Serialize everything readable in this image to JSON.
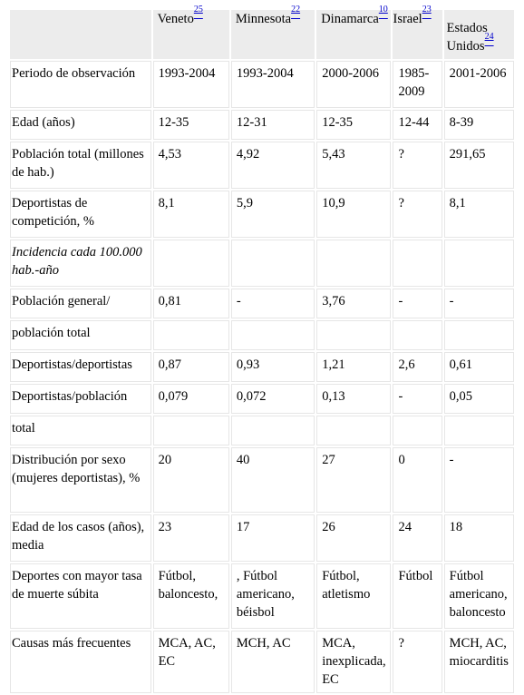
{
  "columns": [
    {
      "name": "",
      "ref": ""
    },
    {
      "name": "Veneto",
      "ref": "25"
    },
    {
      "name": "Minnesota",
      "ref": "22"
    },
    {
      "name": "Dinamarca",
      "ref": "10"
    },
    {
      "name": "Israel",
      "ref": "23"
    },
    {
      "name": "Estados Unidos",
      "ref": "24"
    }
  ],
  "rows": [
    {
      "label": "Periodo de observación",
      "cells": [
        "1993-2004",
        "1993-2004",
        "2000-2006",
        "1985-2009",
        "2001-2006"
      ]
    },
    {
      "label": "Edad (años)",
      "cells": [
        "12-35",
        "12-31",
        "12-35",
        "12-44",
        "8-39"
      ]
    },
    {
      "label": "Población total (millones de hab.)",
      "cells": [
        "4,53",
        "4,92",
        "5,43",
        "?",
        "291,65"
      ]
    },
    {
      "label": "Deportistas de competición, %",
      "cells": [
        "8,1",
        "5,9",
        "10,9",
        "?",
        "8,1"
      ]
    },
    {
      "label": "Incidencia cada 100.000 hab.-año",
      "cells": [
        "",
        "",
        "",
        "",
        ""
      ]
    },
    {
      "label": "Población general/",
      "cells": [
        "0,81",
        "-",
        "3,76",
        "-",
        "-"
      ]
    },
    {
      "label": "población total",
      "cells": [
        "",
        "",
        "",
        "",
        ""
      ]
    },
    {
      "label": "Deportistas/deportistas",
      "cells": [
        "0,87",
        "0,93",
        "1,21",
        "2,6",
        "0,61"
      ]
    },
    {
      "label": "Deportistas/población",
      "cells": [
        "0,079",
        "0,072",
        "0,13",
        "-",
        "0,05"
      ]
    },
    {
      "label": "total",
      "cells": [
        "",
        "",
        "",
        "",
        ""
      ]
    },
    {
      "label": "Distribución por sexo (mujeres deportistas), %",
      "cells": [
        "20",
        "40",
        "27",
        "0",
        "-"
      ]
    },
    {
      "label": "Edad de los casos (años), media",
      "cells": [
        "23",
        "17",
        "26",
        "24",
        "18"
      ]
    },
    {
      "label": "Deportes con mayor tasa de muerte súbita",
      "cells": [
        "Fútbol, baloncesto,",
        ", Fútbol americano, béisbol",
        "Fútbol, atletismo",
        "Fútbol",
        "Fútbol americano, baloncesto"
      ]
    },
    {
      "label": "Causas más frecuentes",
      "cells": [
        "MCA, AC, EC",
        "MCH, AC",
        "MCA, inexplicada, EC",
        "?",
        "MCH, AC, miocarditis"
      ]
    }
  ]
}
